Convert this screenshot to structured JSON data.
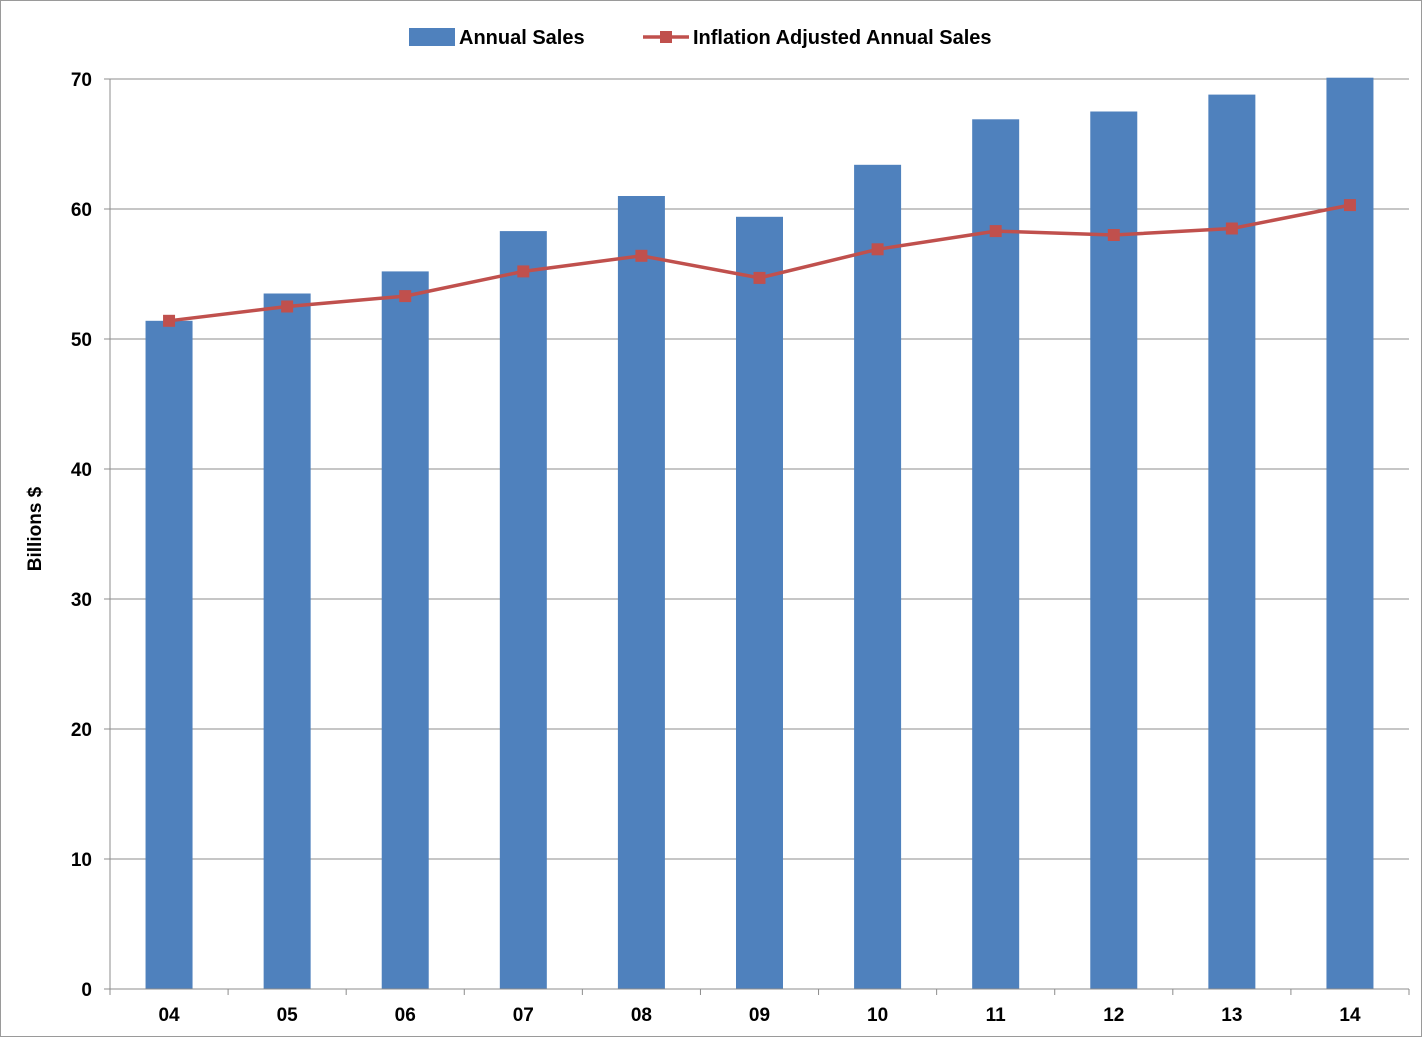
{
  "chart_data": {
    "type": "bar",
    "title": "",
    "xlabel": "",
    "ylabel": "Billions $",
    "ylim": [
      0,
      70
    ],
    "yticks": [
      0,
      10,
      20,
      30,
      40,
      50,
      60,
      70
    ],
    "grid": true,
    "legend_position": "top",
    "categories": [
      "04",
      "05",
      "06",
      "07",
      "08",
      "09",
      "10",
      "11",
      "12",
      "13",
      "14"
    ],
    "series": [
      {
        "name": "Annual Sales",
        "type": "bar",
        "color": "#4F81BD",
        "values": [
          51.4,
          53.5,
          55.2,
          58.3,
          61.0,
          59.4,
          63.4,
          66.9,
          67.5,
          68.8,
          70.1
        ]
      },
      {
        "name": "Inflation Adjusted Annual Sales",
        "type": "line",
        "marker": "square",
        "color": "#C0504D",
        "values": [
          51.4,
          52.5,
          53.3,
          55.2,
          56.4,
          54.7,
          56.9,
          58.3,
          58.0,
          58.5,
          60.3
        ]
      }
    ]
  }
}
